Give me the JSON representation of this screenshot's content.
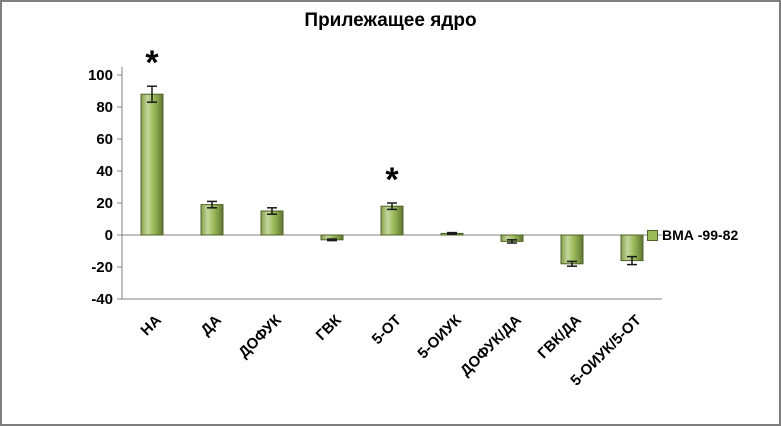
{
  "colors": {
    "bar_light": "#c3d69b",
    "bar_mid": "#9bbb59",
    "bar_dark": "#5f7731",
    "bar_shade": "#86a14b",
    "bar_edge": "#4f6228",
    "axis": "#808080",
    "error_bar": "#1a1a1a",
    "text": "#000000",
    "frame_border": "#7f7f7f",
    "background": "#ffffff"
  },
  "chart_data": {
    "type": "bar",
    "title": "Прилежащее ядро",
    "xlabel": "",
    "ylabel": "",
    "categories": [
      "НА",
      "ДА",
      "ДОФУК",
      "ГВК",
      "5-ОТ",
      "5-ОИУК",
      "ДОФУК/ДА",
      "ГВК/ДА",
      "5-ОИУК/5-ОТ"
    ],
    "series": [
      {
        "name": "ВМА -99-82",
        "values": [
          88,
          19,
          15,
          -3,
          18,
          1,
          -4,
          -18,
          -16
        ],
        "errors": [
          5,
          2,
          2,
          0.5,
          2,
          0.5,
          1,
          1.5,
          2.5
        ]
      }
    ],
    "significance_marker": "*",
    "marked_indices": [
      0,
      4
    ],
    "ylim": [
      -40,
      100
    ],
    "yticks": [
      -40,
      -20,
      0,
      20,
      40,
      60,
      80,
      100
    ],
    "grid": false,
    "legend_position": "right-middle",
    "x_label_rotation_deg": 45
  }
}
